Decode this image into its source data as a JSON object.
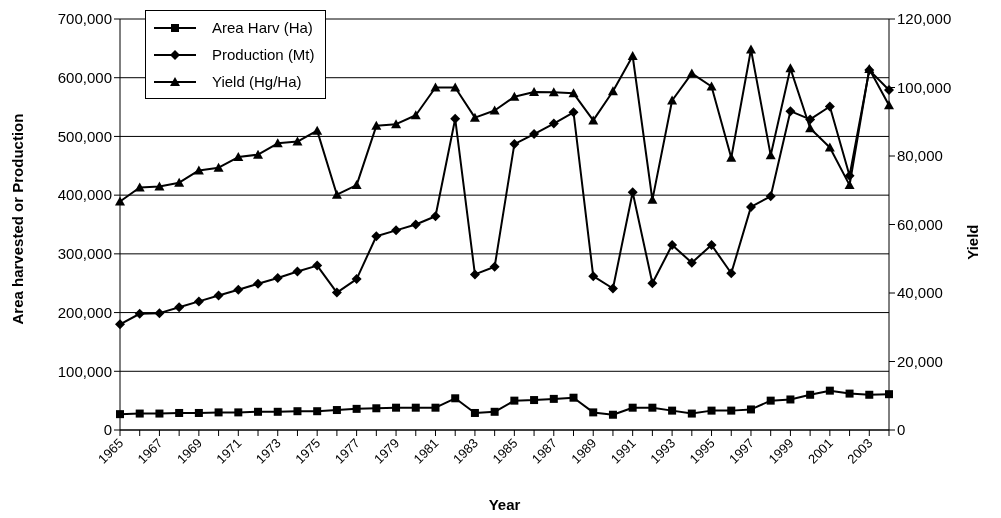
{
  "chart_data": {
    "type": "line",
    "xlabel": "Year",
    "ylabel": "Area harvested or Production",
    "y2label": "Yield",
    "categories": [
      "1965",
      null,
      "1967",
      null,
      "1969",
      null,
      "1971",
      null,
      "1973",
      null,
      "1975",
      null,
      "1977",
      null,
      "1979",
      null,
      "1981",
      null,
      "1983",
      null,
      "1985",
      null,
      "1987",
      null,
      "1989",
      null,
      "1991",
      null,
      "1993",
      null,
      "1995",
      null,
      "1997",
      null,
      "1999",
      null,
      "2001",
      null,
      "2003",
      null
    ],
    "series": [
      {
        "name": "Area Harv (Ha)",
        "color": "#000000",
        "marker": "square",
        "values": [
          27000,
          28000,
          28000,
          29000,
          29000,
          30000,
          30000,
          31000,
          31000,
          32000,
          32000,
          34000,
          36000,
          37000,
          38000,
          38000,
          38000,
          54000,
          29000,
          31000,
          50000,
          51000,
          53000,
          55000,
          30000,
          26000,
          38000,
          38000,
          33000,
          28000,
          33000,
          33000,
          35000,
          50000,
          52000,
          60000,
          67000,
          62000,
          60000,
          61000
        ]
      },
      {
        "name": "Production (Mt)",
        "color": "#000000",
        "marker": "diamond",
        "values": [
          180000,
          198000,
          199000,
          209000,
          219000,
          229000,
          239000,
          249000,
          259000,
          270000,
          280000,
          234000,
          257000,
          330000,
          340000,
          350000,
          364000,
          530000,
          265000,
          278000,
          487000,
          504000,
          522000,
          541000,
          262000,
          241000,
          405000,
          250000,
          315000,
          285000,
          315000,
          267000,
          380000,
          398000,
          543000,
          529000,
          551000,
          433000,
          613000,
          579000
        ]
      },
      {
        "name": "Yield (Hg/Ha)",
        "color": "#000000",
        "marker": "triangle",
        "axis": "y2",
        "values": [
          66700,
          70800,
          71100,
          72200,
          75800,
          76600,
          79700,
          80400,
          83700,
          84200,
          87400,
          68700,
          71500,
          88800,
          89300,
          91900,
          100000,
          100000,
          91200,
          93300,
          97300,
          98700,
          98600,
          98300,
          90400,
          98900,
          109200,
          67200,
          96200,
          104100,
          100300,
          79500,
          111100,
          80200,
          105600,
          88100,
          82500,
          71500,
          105400,
          94800
        ]
      }
    ],
    "ylim": [
      0,
      700000
    ],
    "yticks": [
      {
        "value": 0,
        "label": "0"
      },
      {
        "value": 100000,
        "label": "100,000"
      },
      {
        "value": 200000,
        "label": "200,000"
      },
      {
        "value": 300000,
        "label": "300,000"
      },
      {
        "value": 400000,
        "label": "400,000"
      },
      {
        "value": 500000,
        "label": "500,000"
      },
      {
        "value": 600000,
        "label": "600,000"
      },
      {
        "value": 700000,
        "label": "700,000"
      }
    ],
    "y2lim": [
      0,
      120000
    ],
    "y2ticks": [
      {
        "value": 0,
        "label": "0"
      },
      {
        "value": 20000,
        "label": "20,000"
      },
      {
        "value": 40000,
        "label": "40,000"
      },
      {
        "value": 60000,
        "label": "60,000"
      },
      {
        "value": 80000,
        "label": "80,000"
      },
      {
        "value": 100000,
        "label": "100,000"
      },
      {
        "value": 120000,
        "label": "120,000"
      }
    ],
    "grid": "y",
    "legend": "top left",
    "line_style": "solid"
  }
}
